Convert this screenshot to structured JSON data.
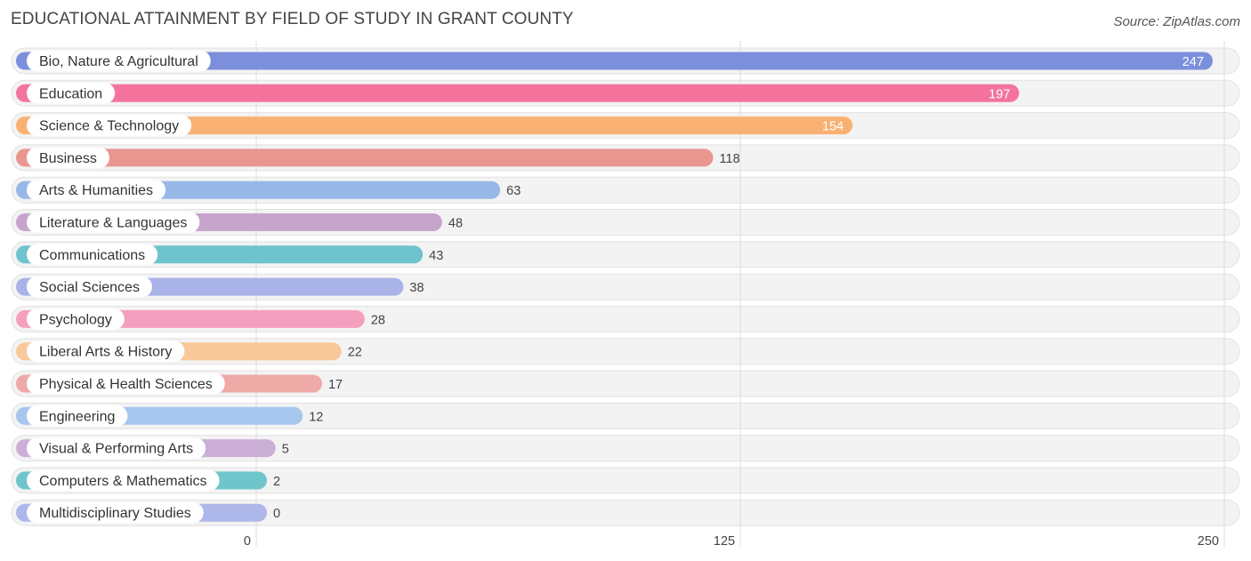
{
  "chart_data": {
    "type": "bar",
    "orientation": "horizontal",
    "title": "EDUCATIONAL ATTAINMENT BY FIELD OF STUDY IN GRANT COUNTY",
    "source": "Source: ZipAtlas.com",
    "categories": [
      "Bio, Nature & Agricultural",
      "Education",
      "Science & Technology",
      "Business",
      "Arts & Humanities",
      "Literature & Languages",
      "Communications",
      "Social Sciences",
      "Psychology",
      "Liberal Arts & History",
      "Physical & Health Sciences",
      "Engineering",
      "Visual & Performing Arts",
      "Computers & Mathematics",
      "Multidisciplinary Studies"
    ],
    "values": [
      247,
      197,
      154,
      118,
      63,
      48,
      43,
      38,
      28,
      22,
      17,
      12,
      5,
      2,
      0
    ],
    "value_labels": [
      "247",
      "197",
      "154",
      "118",
      "63",
      "48",
      "43",
      "38",
      "28",
      "22",
      "17",
      "12",
      "5",
      "2",
      "0"
    ],
    "colors": [
      "#7b8fdd",
      "#f4739c",
      "#f9b173",
      "#ea9690",
      "#97b8e6",
      "#c6a4cc",
      "#6ec3cc",
      "#a9b3e8",
      "#f49fbe",
      "#f9c89a",
      "#eeaaa6",
      "#a6c6ee",
      "#cbafd6",
      "#6ec6cc",
      "#aeb7ea"
    ],
    "xlim": [
      0,
      250
    ],
    "ticks": [
      0,
      125,
      250
    ],
    "tick_labels": [
      "0",
      "125",
      "250"
    ],
    "grid": true
  }
}
